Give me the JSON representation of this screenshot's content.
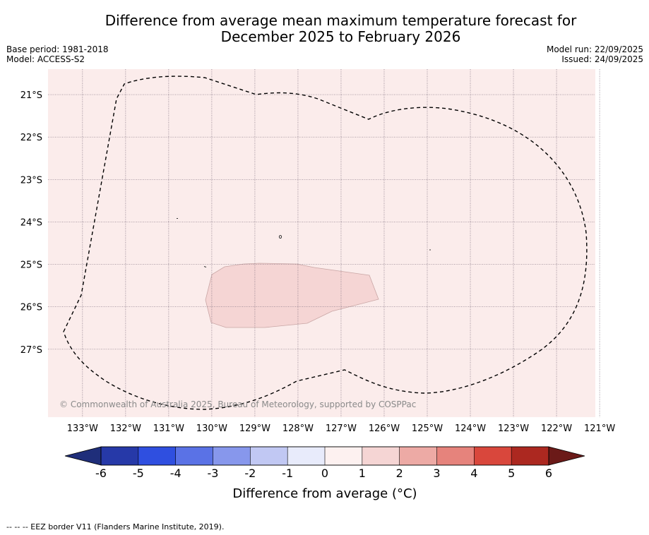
{
  "map": {
    "title_line1": "Difference from average mean maximum temperature forecast for",
    "title_line2": "December 2025 to February 2026",
    "base_period": "Base period: 1981-2018",
    "model": "Model: ACCESS-S2",
    "model_run": "Model run: 22/09/2025",
    "issued": "Issued: 24/09/2025",
    "copyright": "© Commonwealth of Australia 2025, Bureau of Meteorology, supported by COSPPac",
    "footer": "-- -- -- EEZ border V11 (Flanders Marine Institute, 2019).",
    "background_color": "#fbeceb",
    "anomaly_region_color": "#f5d5d4",
    "lat_labels": [
      "21°S",
      "22°S",
      "23°S",
      "24°S",
      "25°S",
      "26°S",
      "27°S"
    ],
    "lon_labels": [
      "133°W",
      "132°W",
      "131°W",
      "130°W",
      "129°W",
      "128°W",
      "127°W",
      "126°W",
      "125°W",
      "124°W",
      "123°W",
      "122°W",
      "121°W"
    ],
    "extent": {
      "lon_west": 133.8,
      "lon_east": 121.1,
      "lat_north": 20.4,
      "lat_south": 28.6
    }
  },
  "colorbar": {
    "title": "Difference from average (°C)",
    "ticks": [
      "-6",
      "-5",
      "-4",
      "-3",
      "-2",
      "-1",
      "0",
      "1",
      "2",
      "3",
      "4",
      "5",
      "6"
    ],
    "low_extend_color": "#1f2e7a",
    "high_extend_color": "#6b1a18",
    "colors": [
      "#2639a8",
      "#2f4fe0",
      "#5a72e6",
      "#8797ec",
      "#c1c8f3",
      "#e8ebfb",
      "#fdf1f0",
      "#f5d5d4",
      "#edaaa5",
      "#e6837c",
      "#d9473c",
      "#ac2820"
    ]
  }
}
